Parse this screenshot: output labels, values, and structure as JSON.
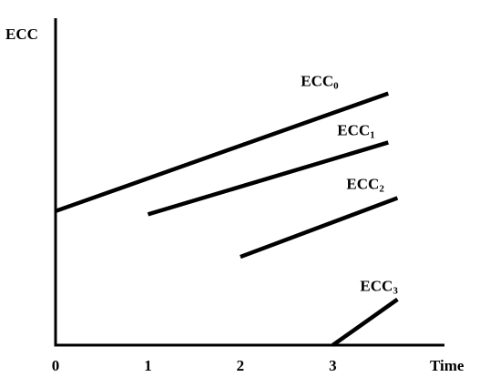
{
  "chart_data": {
    "type": "line",
    "ylabel": "ECC",
    "xlabel": "Time",
    "x_ticks": [
      "0",
      "1",
      "2",
      "3"
    ],
    "xlim": [
      0,
      4.1
    ],
    "ylim": [
      0,
      10
    ],
    "grid": false,
    "legend": "none",
    "series": [
      {
        "name": "ECC",
        "sub": "0",
        "points": [
          [
            0,
            4.1
          ],
          [
            3.6,
            7.7
          ]
        ]
      },
      {
        "name": "ECC",
        "sub": "1",
        "points": [
          [
            1,
            4.0
          ],
          [
            3.6,
            6.2
          ]
        ]
      },
      {
        "name": "ECC",
        "sub": "2",
        "points": [
          [
            2,
            2.7
          ],
          [
            3.7,
            4.5
          ]
        ]
      },
      {
        "name": "ECC",
        "sub": "3",
        "points": [
          [
            3,
            0.0
          ],
          [
            3.7,
            1.4
          ]
        ]
      }
    ]
  }
}
